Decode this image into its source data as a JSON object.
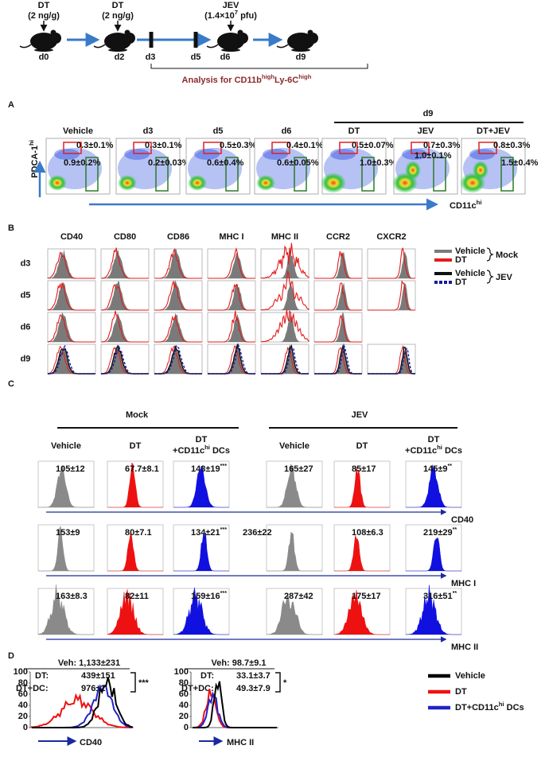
{
  "timeline": {
    "treatments": [
      {
        "agent": "DT",
        "dose": "(2 ng/g)"
      },
      {
        "agent": "DT",
        "dose": "(2 ng/g)"
      },
      {
        "agent": "JEV",
        "dose": [
          "(1.4×10",
          "7",
          " pfu)"
        ]
      }
    ],
    "days": [
      "d0",
      "d2",
      "d3",
      "d5",
      "d6",
      "d9"
    ],
    "analysis": [
      "Analysis for CD11b",
      "high",
      "Ly-6C",
      "high"
    ]
  },
  "panel_a": {
    "label": "A",
    "group": "d9",
    "y_axis": [
      "PDCA-1",
      "hi"
    ],
    "x_axis": [
      "CD11c",
      "hi"
    ],
    "columns": [
      {
        "name": "Vehicle",
        "upper": "0.3±0.1%",
        "lower": "0.9±0.2%"
      },
      {
        "name": "d3",
        "upper": "0.3±0.1%",
        "lower": "0.2±0.03%"
      },
      {
        "name": "d5",
        "upper": "0.5±0.3%",
        "lower": "0.6±0.4%"
      },
      {
        "name": "d6",
        "upper": "0.4±0.1%",
        "lower": "0.6±0.05%"
      },
      {
        "name": "DT",
        "upper": "0.5±0.07%",
        "lower": "1.0±0.3%"
      },
      {
        "name": "JEV",
        "upper": "0.7±0.3%",
        "lower": "1.0±0.1%"
      },
      {
        "name": "DT+JEV",
        "upper": "0.8±0.3%",
        "lower": "1.5±0.4%"
      }
    ]
  },
  "panel_b": {
    "label": "B",
    "markers": [
      "CD40",
      "CD80",
      "CD86",
      "MHC I",
      "MHC II",
      "CCR2",
      "CXCR2"
    ],
    "rows": [
      "d3",
      "d5",
      "d6",
      "d9"
    ],
    "legend": [
      {
        "group": "Mock",
        "entries": [
          {
            "name": "Vehicle",
            "color": "#7a7a7a"
          },
          {
            "name": "DT",
            "color": "#e41a1a"
          }
        ]
      },
      {
        "group": "JEV",
        "entries": [
          {
            "name": "Vehicle",
            "color": "#111111"
          },
          {
            "name": "DT",
            "color": "#1a1a9c"
          }
        ]
      }
    ]
  },
  "panel_c": {
    "label": "C",
    "groups": [
      "Mock",
      "JEV"
    ],
    "columns": [
      {
        "name": [
          "Vehicle"
        ],
        "color": "#8a8a8a"
      },
      {
        "name": [
          "DT"
        ],
        "color": "#ee1111"
      },
      {
        "name": [
          "DT",
          "+CD11c",
          "hi",
          " DCs"
        ],
        "color": "#1010e0"
      },
      {
        "name": [
          "Vehicle"
        ],
        "color": "#8a8a8a"
      },
      {
        "name": [
          "DT"
        ],
        "color": "#ee1111"
      },
      {
        "name": [
          "DT",
          "+CD11c",
          "hi",
          " DCs"
        ],
        "color": "#1010e0"
      }
    ],
    "rows": [
      {
        "marker": "CD40",
        "values": [
          {
            "text": "105±12"
          },
          {
            "text": "67.7±8.1"
          },
          {
            "text": "143±19",
            "sig": "***"
          },
          {
            "text": "165±27"
          },
          {
            "text": "85±17"
          },
          {
            "text": "145±9",
            "sig": "**"
          }
        ]
      },
      {
        "marker": "MHC I",
        "values": [
          {
            "text": "153±9"
          },
          {
            "text": "80±7.1"
          },
          {
            "text": "134±21",
            "sig": "***"
          },
          {
            "text": "236±22"
          },
          {
            "text": "108±6.3"
          },
          {
            "text": "219±29",
            "sig": "**"
          }
        ]
      },
      {
        "marker": "MHC II",
        "values": [
          {
            "text": "163±8.3"
          },
          {
            "text": "82±11"
          },
          {
            "text": "159±16",
            "sig": "***"
          },
          {
            "text": "287±42"
          },
          {
            "text": "175±17"
          },
          {
            "text": "316±51",
            "sig": "**"
          }
        ]
      }
    ]
  },
  "panel_d": {
    "label": "D",
    "yticks": [
      "100",
      "80",
      "60",
      "40",
      "20",
      "0"
    ],
    "plots": [
      {
        "marker": "CD40",
        "vehicle": "Veh: 1,133±231",
        "dt": [
          "DT:",
          "439±151"
        ],
        "dt_dc": [
          "DT+DC:",
          "976±2"
        ],
        "significance": "***"
      },
      {
        "marker": "MHC II",
        "vehicle": "Veh: 98.7±9.1",
        "dt": [
          "DT:",
          "33.1±3.7"
        ],
        "dt_dc": [
          "DT+DC:",
          "49.3±7.9"
        ],
        "significance": "*"
      }
    ],
    "legend": [
      {
        "name": [
          "Vehicle"
        ],
        "color": "#000000"
      },
      {
        "name": [
          "DT"
        ],
        "color": "#ee1111"
      },
      {
        "name": [
          "DT+CD11c",
          "hi",
          " DCs"
        ],
        "color": "#2222cc"
      }
    ]
  }
}
